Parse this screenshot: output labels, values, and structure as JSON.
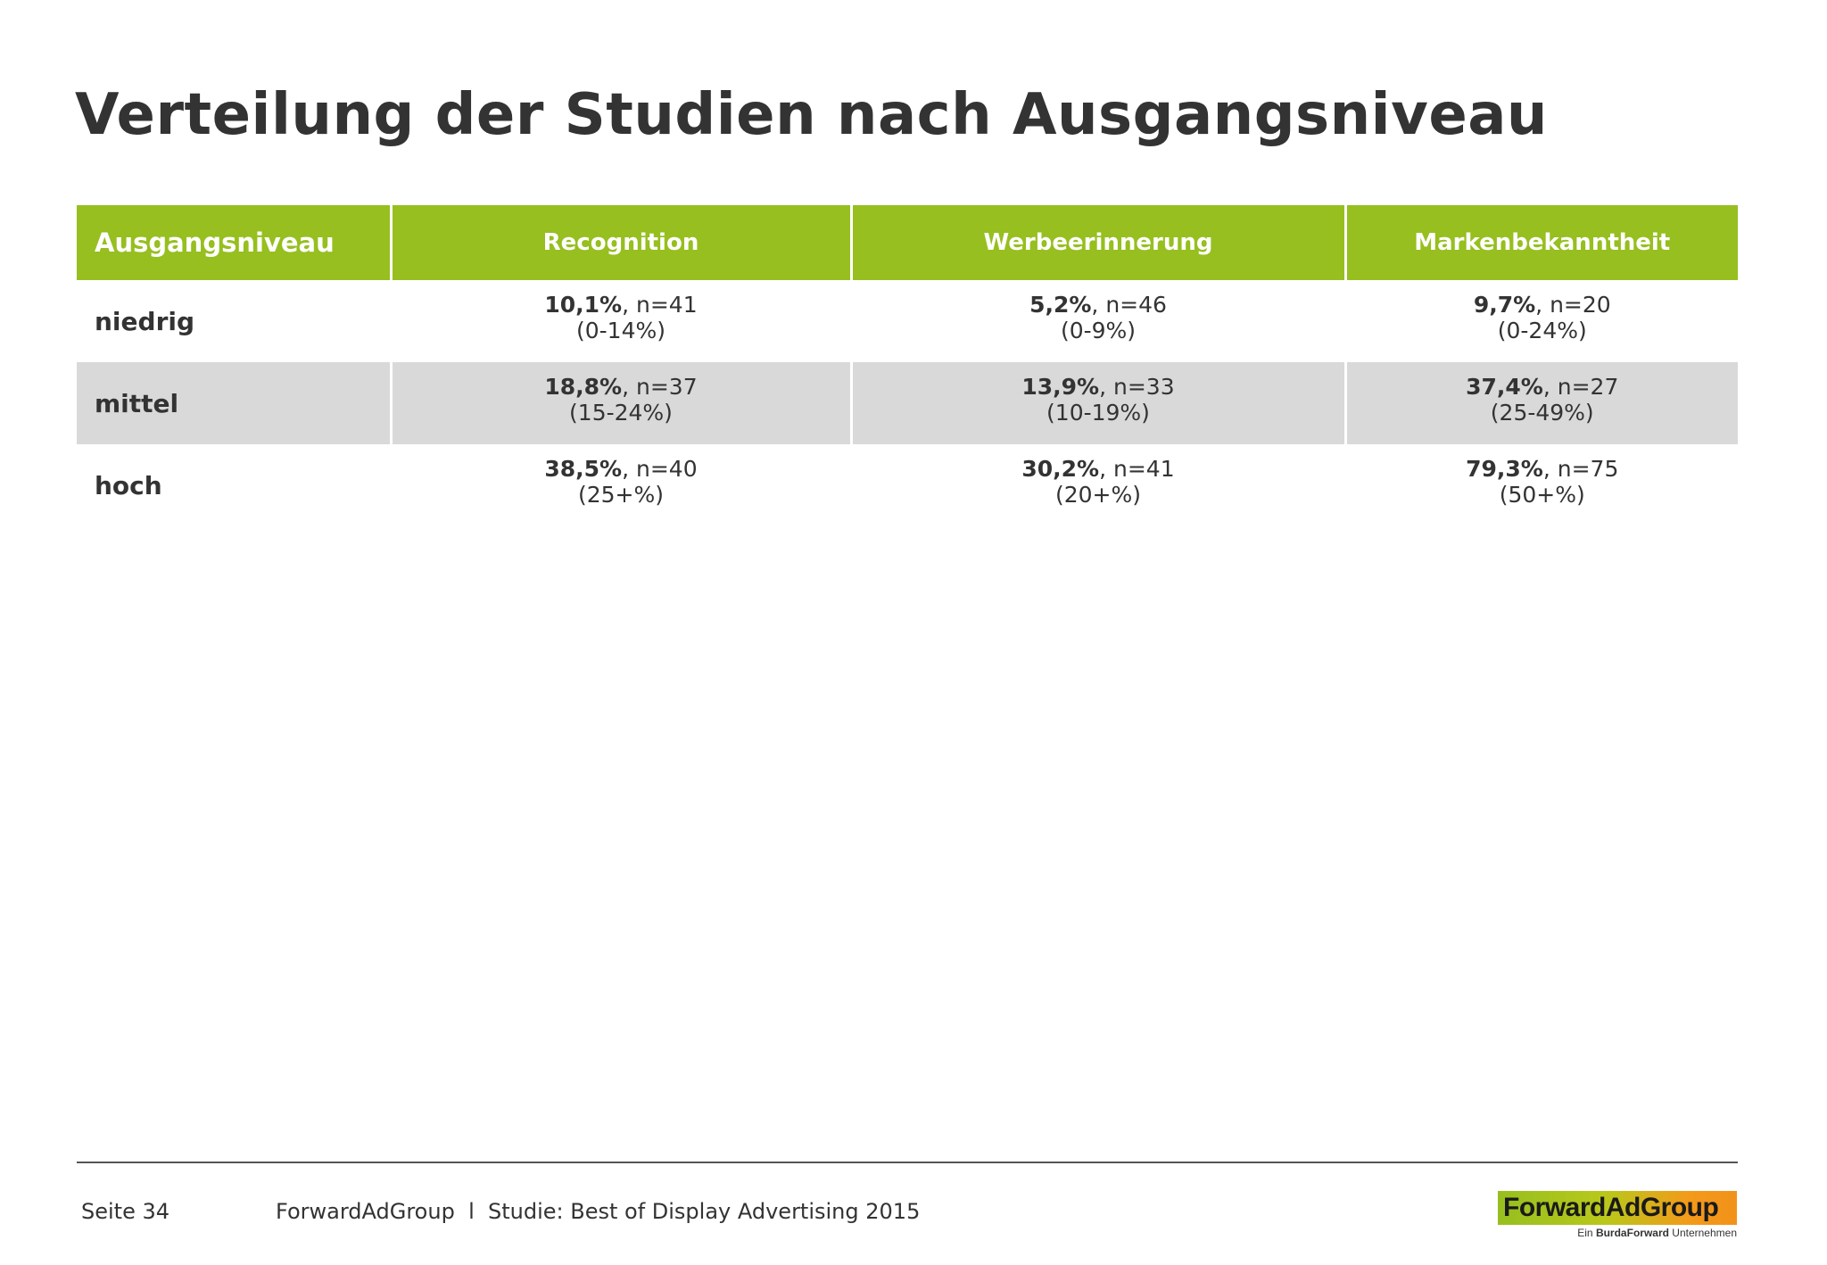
{
  "page": {
    "title": "Verteilung der Studien nach Ausgangsniveau"
  },
  "table": {
    "headers": [
      "Ausgangsniveau",
      "Recognition",
      "Werbeerinnerung",
      "Markenbekanntheit"
    ],
    "rows": [
      {
        "label": "niedrig",
        "cells": [
          {
            "value": "10,1%",
            "n": ", n=41",
            "range": "(0-14%)"
          },
          {
            "value": "5,2%",
            "n": ", n=46",
            "range": "(0-9%)"
          },
          {
            "value": "9,7%",
            "n": ", n=20",
            "range": "(0-24%)"
          }
        ]
      },
      {
        "label": "mittel",
        "cells": [
          {
            "value": "18,8%",
            "n": ", n=37",
            "range": "(15-24%)"
          },
          {
            "value": "13,9%",
            "n": ", n=33",
            "range": "(10-19%)"
          },
          {
            "value": "37,4%",
            "n": ", n=27",
            "range": "(25-49%)"
          }
        ]
      },
      {
        "label": "hoch",
        "cells": [
          {
            "value": "38,5%",
            "n": ", n=40",
            "range": "(25+%)"
          },
          {
            "value": "30,2%",
            "n": ", n=41",
            "range": "(20+%)"
          },
          {
            "value": "79,3%",
            "n": ", n=75",
            "range": "(50+%)"
          }
        ]
      }
    ]
  },
  "footer": {
    "page_label": "Seite 34",
    "source": "ForwardAdGroup  l  Studie: Best of Display Advertising 2015",
    "logo_text": "ForwardAdGroup",
    "logo_sub_prefix": "Ein ",
    "logo_sub_brand": "BurdaForward",
    "logo_sub_suffix": " Unternehmen"
  },
  "colors": {
    "header_green": "#96bf1f",
    "row_shade": "#d9d9d9",
    "text": "#333333"
  }
}
